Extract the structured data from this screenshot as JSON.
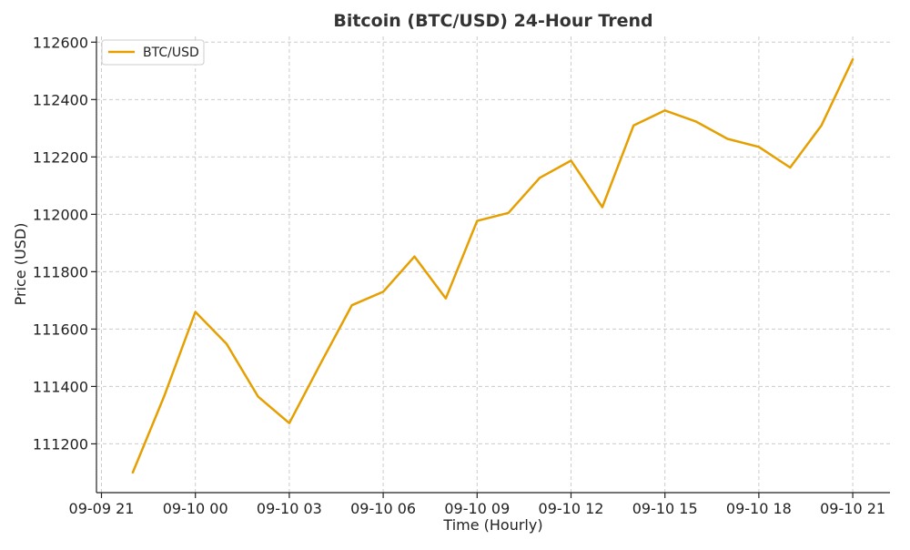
{
  "chart_data": {
    "type": "line",
    "title": "Bitcoin (BTC/USD) 24-Hour Trend",
    "xlabel": "Time (Hourly)",
    "ylabel": "Price (USD)",
    "x_tick_labels": [
      "09-09 21",
      "09-10 00",
      "09-10 03",
      "09-10 06",
      "09-10 09",
      "09-10 12",
      "09-10 15",
      "09-10 18",
      "09-10 21"
    ],
    "y_ticks": [
      111200,
      111400,
      111600,
      111800,
      112000,
      112200,
      112400,
      112600
    ],
    "ylim": [
      111030,
      112620
    ],
    "grid": true,
    "legend_position": "upper-left",
    "x": [
      "09-09 22",
      "09-09 23",
      "09-10 00",
      "09-10 01",
      "09-10 02",
      "09-10 03",
      "09-10 04",
      "09-10 05",
      "09-10 06",
      "09-10 07",
      "09-10 08",
      "09-10 09",
      "09-10 10",
      "09-10 11",
      "09-10 12",
      "09-10 13",
      "09-10 14",
      "09-10 15",
      "09-10 16",
      "09-10 17",
      "09-10 18",
      "09-10 19",
      "09-10 20",
      "09-10 21"
    ],
    "series": [
      {
        "name": "BTC/USD",
        "color": "#E69F00",
        "values": [
          111100,
          111365,
          111660,
          111548,
          111365,
          111272,
          111480,
          111683,
          111730,
          111853,
          111707,
          111977,
          112005,
          112127,
          112187,
          112025,
          112310,
          112362,
          112323,
          112263,
          112235,
          112163,
          112310,
          112540
        ]
      }
    ]
  }
}
